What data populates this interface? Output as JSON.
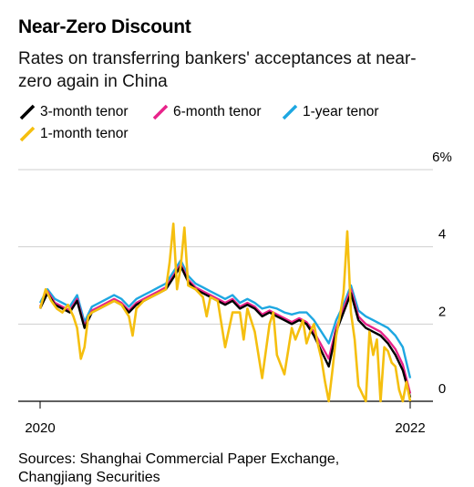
{
  "chart_data": {
    "type": "line",
    "title": "Near-Zero Discount",
    "subtitle": "Rates on transferring bankers' acceptances at near-zero again in China",
    "ylim": [
      0,
      6
    ],
    "yticks": [
      "0",
      "2",
      "4",
      "6%"
    ],
    "xlim": [
      2020.0,
      2022.0
    ],
    "xticks": [
      "2020",
      "2022"
    ],
    "legend_position": "top-left",
    "grid": "horizontal",
    "series": [
      {
        "name": "3-month tenor",
        "color": "#000000",
        "x": [
          2020.0,
          2020.04,
          2020.08,
          2020.12,
          2020.16,
          2020.2,
          2020.24,
          2020.28,
          2020.32,
          2020.36,
          2020.4,
          2020.44,
          2020.48,
          2020.52,
          2020.56,
          2020.6,
          2020.64,
          2020.68,
          2020.72,
          2020.76,
          2020.8,
          2020.84,
          2020.88,
          2020.92,
          2020.96,
          2021.0,
          2021.04,
          2021.08,
          2021.12,
          2021.16,
          2021.2,
          2021.24,
          2021.28,
          2021.32,
          2021.36,
          2021.4,
          2021.44,
          2021.48,
          2021.52,
          2021.56,
          2021.6,
          2021.64,
          2021.68,
          2021.72,
          2021.76,
          2021.8,
          2021.84,
          2021.88,
          2021.92,
          2021.96,
          2022.0
        ],
        "y": [
          2.4,
          2.8,
          2.5,
          2.4,
          2.3,
          2.6,
          1.9,
          2.3,
          2.4,
          2.5,
          2.6,
          2.5,
          2.3,
          2.5,
          2.6,
          2.7,
          2.8,
          2.9,
          3.2,
          3.5,
          3.1,
          2.9,
          2.8,
          2.7,
          2.6,
          2.5,
          2.6,
          2.4,
          2.5,
          2.4,
          2.2,
          2.3,
          2.2,
          2.1,
          2.0,
          2.1,
          2.0,
          1.7,
          1.3,
          0.9,
          1.8,
          2.3,
          2.8,
          2.1,
          1.9,
          1.8,
          1.7,
          1.5,
          1.2,
          0.8,
          0.1
        ]
      },
      {
        "name": "6-month tenor",
        "color": "#e8238a",
        "x": [
          2020.0,
          2020.04,
          2020.08,
          2020.12,
          2020.16,
          2020.2,
          2020.24,
          2020.28,
          2020.32,
          2020.36,
          2020.4,
          2020.44,
          2020.48,
          2020.52,
          2020.56,
          2020.6,
          2020.64,
          2020.68,
          2020.72,
          2020.76,
          2020.8,
          2020.84,
          2020.88,
          2020.92,
          2020.96,
          2021.0,
          2021.04,
          2021.08,
          2021.12,
          2021.16,
          2021.2,
          2021.24,
          2021.28,
          2021.32,
          2021.36,
          2021.4,
          2021.44,
          2021.48,
          2021.52,
          2021.56,
          2021.6,
          2021.64,
          2021.68,
          2021.72,
          2021.76,
          2021.8,
          2021.84,
          2021.88,
          2021.92,
          2021.96,
          2022.0
        ],
        "y": [
          2.45,
          2.85,
          2.55,
          2.45,
          2.35,
          2.65,
          1.95,
          2.35,
          2.45,
          2.55,
          2.65,
          2.55,
          2.35,
          2.55,
          2.65,
          2.75,
          2.85,
          2.95,
          3.25,
          3.55,
          3.15,
          2.95,
          2.85,
          2.75,
          2.65,
          2.55,
          2.65,
          2.45,
          2.55,
          2.45,
          2.25,
          2.35,
          2.25,
          2.15,
          2.05,
          2.15,
          2.05,
          1.8,
          1.45,
          1.1,
          1.9,
          2.4,
          2.9,
          2.2,
          2.0,
          1.9,
          1.8,
          1.6,
          1.35,
          0.95,
          0.2
        ]
      },
      {
        "name": "1-year tenor",
        "color": "#1ea7e1",
        "x": [
          2020.0,
          2020.04,
          2020.08,
          2020.12,
          2020.16,
          2020.2,
          2020.24,
          2020.28,
          2020.32,
          2020.36,
          2020.4,
          2020.44,
          2020.48,
          2020.52,
          2020.56,
          2020.6,
          2020.64,
          2020.68,
          2020.72,
          2020.76,
          2020.8,
          2020.84,
          2020.88,
          2020.92,
          2020.96,
          2021.0,
          2021.04,
          2021.08,
          2021.12,
          2021.16,
          2021.2,
          2021.24,
          2021.28,
          2021.32,
          2021.36,
          2021.4,
          2021.44,
          2021.48,
          2021.52,
          2021.56,
          2021.6,
          2021.64,
          2021.68,
          2021.72,
          2021.76,
          2021.8,
          2021.84,
          2021.88,
          2021.92,
          2021.96,
          2022.0
        ],
        "y": [
          2.55,
          2.9,
          2.65,
          2.55,
          2.45,
          2.75,
          2.05,
          2.45,
          2.55,
          2.65,
          2.75,
          2.65,
          2.45,
          2.65,
          2.75,
          2.85,
          2.95,
          3.05,
          3.35,
          3.65,
          3.25,
          3.05,
          2.95,
          2.85,
          2.75,
          2.65,
          2.75,
          2.55,
          2.65,
          2.55,
          2.4,
          2.45,
          2.4,
          2.3,
          2.25,
          2.3,
          2.3,
          2.1,
          1.8,
          1.5,
          2.1,
          2.5,
          3.0,
          2.35,
          2.2,
          2.1,
          2.0,
          1.9,
          1.7,
          1.4,
          0.6
        ]
      },
      {
        "name": "1-month tenor",
        "color": "#f5bf0f",
        "x": [
          2020.0,
          2020.03,
          2020.06,
          2020.09,
          2020.12,
          2020.15,
          2020.18,
          2020.2,
          2020.22,
          2020.24,
          2020.26,
          2020.28,
          2020.32,
          2020.36,
          2020.4,
          2020.44,
          2020.48,
          2020.5,
          2020.52,
          2020.56,
          2020.6,
          2020.64,
          2020.68,
          2020.7,
          2020.72,
          2020.74,
          2020.76,
          2020.78,
          2020.8,
          2020.84,
          2020.88,
          2020.9,
          2020.92,
          2020.96,
          2021.0,
          2021.04,
          2021.08,
          2021.1,
          2021.12,
          2021.16,
          2021.2,
          2021.24,
          2021.26,
          2021.28,
          2021.32,
          2021.36,
          2021.38,
          2021.42,
          2021.44,
          2021.46,
          2021.48,
          2021.5,
          2021.52,
          2021.54,
          2021.56,
          2021.58,
          2021.6,
          2021.62,
          2021.64,
          2021.66,
          2021.68,
          2021.7,
          2021.72,
          2021.76,
          2021.78,
          2021.8,
          2021.82,
          2021.84,
          2021.86,
          2021.88,
          2021.9,
          2021.92,
          2021.94,
          2021.96,
          2021.98,
          2022.0
        ],
        "y": [
          2.4,
          2.9,
          2.6,
          2.4,
          2.3,
          2.5,
          2.2,
          1.9,
          1.1,
          1.4,
          2.2,
          2.3,
          2.4,
          2.5,
          2.6,
          2.5,
          2.2,
          1.7,
          2.4,
          2.6,
          2.7,
          2.8,
          2.9,
          3.6,
          4.6,
          2.9,
          3.5,
          4.5,
          3.0,
          2.9,
          2.7,
          2.2,
          2.7,
          2.6,
          1.4,
          2.3,
          2.3,
          1.6,
          2.4,
          1.8,
          0.6,
          2.0,
          2.3,
          1.2,
          0.7,
          1.9,
          1.6,
          2.1,
          1.5,
          1.8,
          2.0,
          1.5,
          1.1,
          0.5,
          0.0,
          0.8,
          1.7,
          2.2,
          2.8,
          4.4,
          2.3,
          1.6,
          0.4,
          0.0,
          1.8,
          1.2,
          1.6,
          0.0,
          1.4,
          1.3,
          1.0,
          0.9,
          0.3,
          0.0,
          0.5,
          0.0
        ]
      }
    ]
  },
  "source": {
    "line1": "Sources: Shanghai Commercial Paper Exchange,",
    "line2": "Changjiang Securities"
  }
}
